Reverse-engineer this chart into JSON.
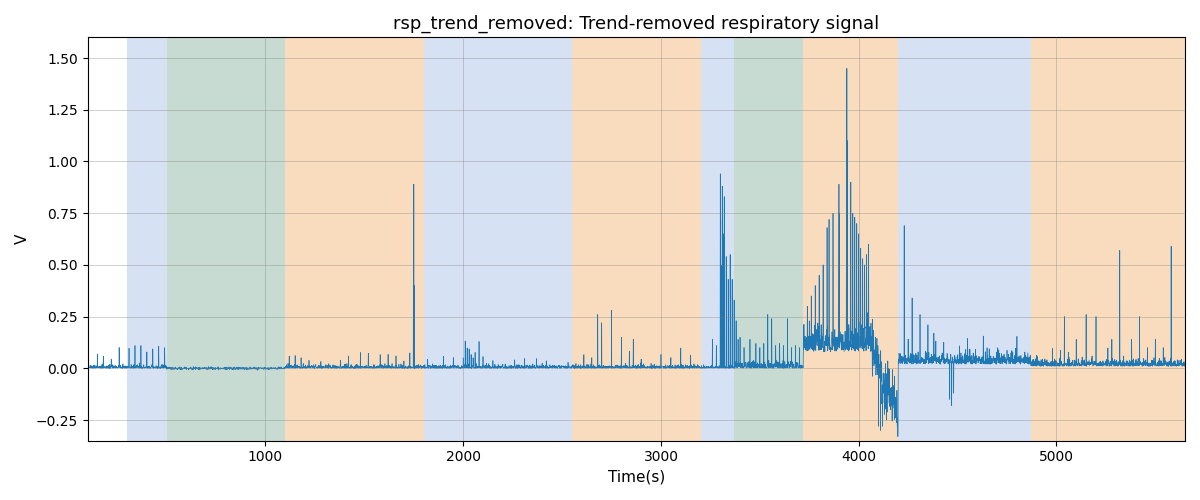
{
  "title": "rsp_trend_removed: Trend-removed respiratory signal",
  "xlabel": "Time(s)",
  "ylabel": "V",
  "ylim": [
    -0.35,
    1.6
  ],
  "xlim": [
    100,
    5650
  ],
  "signal_color": "#1f77b4",
  "signal_linewidth": 0.5,
  "background_color": "white",
  "figsize": [
    12,
    5
  ],
  "dpi": 100,
  "bands": [
    {
      "xmin": 300,
      "xmax": 500,
      "color": "#aec6e8",
      "alpha": 0.5
    },
    {
      "xmin": 500,
      "xmax": 1100,
      "color": "#90c07a",
      "alpha": 0.4
    },
    {
      "xmin": 500,
      "xmax": 1100,
      "color": "#aec6e8",
      "alpha": 0.3
    },
    {
      "xmin": 1100,
      "xmax": 1800,
      "color": "#f5c08a",
      "alpha": 0.55
    },
    {
      "xmin": 1800,
      "xmax": 2550,
      "color": "#aec6e8",
      "alpha": 0.5
    },
    {
      "xmin": 2550,
      "xmax": 3200,
      "color": "#f5c08a",
      "alpha": 0.55
    },
    {
      "xmin": 3200,
      "xmax": 3370,
      "color": "#aec6e8",
      "alpha": 0.5
    },
    {
      "xmin": 3370,
      "xmax": 3720,
      "color": "#90c07a",
      "alpha": 0.4
    },
    {
      "xmin": 3370,
      "xmax": 3720,
      "color": "#aec6e8",
      "alpha": 0.3
    },
    {
      "xmin": 3720,
      "xmax": 4200,
      "color": "#f5c08a",
      "alpha": 0.55
    },
    {
      "xmin": 4200,
      "xmax": 4870,
      "color": "#aec6e8",
      "alpha": 0.5
    },
    {
      "xmin": 4870,
      "xmax": 5650,
      "color": "#f5c08a",
      "alpha": 0.55
    }
  ],
  "seed": 42
}
